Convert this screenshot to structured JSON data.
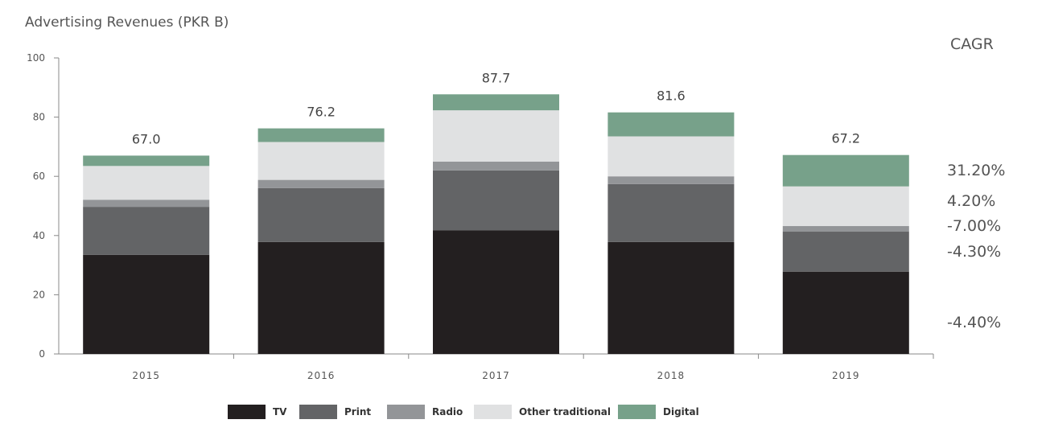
{
  "chart_data": {
    "type": "bar",
    "stacked": true,
    "title": "Advertising Revenues (PKR B)",
    "categories": [
      "2015",
      "2016",
      "2017",
      "2018",
      "2019"
    ],
    "totals": [
      "67.0",
      "76.2",
      "87.7",
      "81.6",
      "67.2"
    ],
    "ylim": [
      0,
      100
    ],
    "yticks": [
      "0",
      "20",
      "40",
      "60",
      "80",
      "100"
    ],
    "series": [
      {
        "name": "TV",
        "color": "#231f20",
        "values": [
          33.5,
          37.8,
          41.8,
          37.8,
          27.8
        ]
      },
      {
        "name": "Print",
        "color": "#636466",
        "values": [
          16.2,
          18.2,
          20.2,
          19.6,
          13.5
        ]
      },
      {
        "name": "Radio",
        "color": "#939598",
        "values": [
          2.4,
          2.8,
          3.0,
          2.6,
          1.9
        ]
      },
      {
        "name": "Other traditional",
        "color": "#e0e1e2",
        "values": [
          11.4,
          12.8,
          17.3,
          13.5,
          13.4
        ]
      },
      {
        "name": "Digital",
        "color": "#77a18a",
        "values": [
          3.5,
          4.6,
          5.4,
          8.1,
          10.6
        ]
      }
    ],
    "cagr": {
      "title": "CAGR",
      "values": [
        {
          "series": "Digital",
          "value": "31.20%"
        },
        {
          "series": "Other traditional",
          "value": "4.20%"
        },
        {
          "series": "Radio",
          "value": "-7.00%"
        },
        {
          "series": "Print",
          "value": "-4.30%"
        },
        {
          "series": "TV",
          "value": "-4.40%"
        }
      ]
    },
    "legend_position": "bottom"
  }
}
